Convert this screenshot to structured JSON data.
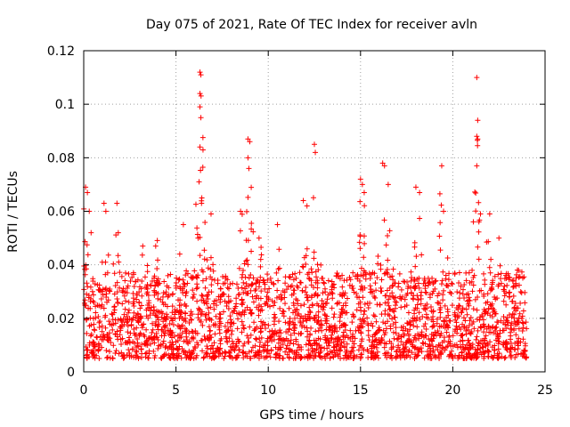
{
  "chart_data": {
    "type": "scatter",
    "title": "Day 075 of 2021, Rate Of TEC Index for receiver avln",
    "xlabel": "GPS time / hours",
    "ylabel": "ROTI / TECUs",
    "xlim": [
      0,
      25
    ],
    "ylim": [
      0,
      0.12
    ],
    "xticks": [
      0,
      5,
      10,
      15,
      20,
      25
    ],
    "xtick_labels": [
      "0",
      "5",
      "10",
      "15",
      "20",
      "25"
    ],
    "yticks": [
      0,
      0.02,
      0.04,
      0.06,
      0.08,
      0.1,
      0.12
    ],
    "ytick_labels": [
      "0",
      "0.02",
      "0.04",
      "0.06",
      "0.08",
      "0.1",
      "0.12"
    ],
    "grid": true,
    "marker": "plus",
    "color": "#ff0000",
    "series": [
      {
        "name": "ROTI",
        "baseline_range": [
          0.005,
          0.03
        ],
        "notable_points": [
          {
            "x": 0.1,
            "y": 0.069
          },
          {
            "x": 0.2,
            "y": 0.067
          },
          {
            "x": 0.3,
            "y": 0.06
          },
          {
            "x": 0.4,
            "y": 0.052
          },
          {
            "x": 1.1,
            "y": 0.063
          },
          {
            "x": 1.2,
            "y": 0.06
          },
          {
            "x": 1.8,
            "y": 0.063
          },
          {
            "x": 3.2,
            "y": 0.047
          },
          {
            "x": 3.9,
            "y": 0.047
          },
          {
            "x": 5.4,
            "y": 0.055
          },
          {
            "x": 6.3,
            "y": 0.112
          },
          {
            "x": 6.35,
            "y": 0.111
          },
          {
            "x": 6.3,
            "y": 0.104
          },
          {
            "x": 6.3,
            "y": 0.099
          },
          {
            "x": 6.35,
            "y": 0.095
          },
          {
            "x": 6.3,
            "y": 0.084
          },
          {
            "x": 6.25,
            "y": 0.071
          },
          {
            "x": 6.4,
            "y": 0.065
          },
          {
            "x": 6.9,
            "y": 0.059
          },
          {
            "x": 8.5,
            "y": 0.06
          },
          {
            "x": 8.9,
            "y": 0.087
          },
          {
            "x": 9.0,
            "y": 0.086
          },
          {
            "x": 8.9,
            "y": 0.08
          },
          {
            "x": 8.95,
            "y": 0.076
          },
          {
            "x": 9.5,
            "y": 0.05
          },
          {
            "x": 10.5,
            "y": 0.055
          },
          {
            "x": 11.9,
            "y": 0.064
          },
          {
            "x": 12.1,
            "y": 0.062
          },
          {
            "x": 12.5,
            "y": 0.085
          },
          {
            "x": 12.55,
            "y": 0.082
          },
          {
            "x": 15.0,
            "y": 0.072
          },
          {
            "x": 15.1,
            "y": 0.07
          },
          {
            "x": 15.2,
            "y": 0.067
          },
          {
            "x": 16.2,
            "y": 0.078
          },
          {
            "x": 16.3,
            "y": 0.077
          },
          {
            "x": 16.5,
            "y": 0.07
          },
          {
            "x": 18.0,
            "y": 0.069
          },
          {
            "x": 18.2,
            "y": 0.067
          },
          {
            "x": 19.4,
            "y": 0.077
          },
          {
            "x": 19.5,
            "y": 0.06
          },
          {
            "x": 21.3,
            "y": 0.11
          },
          {
            "x": 21.35,
            "y": 0.094
          },
          {
            "x": 21.3,
            "y": 0.088
          },
          {
            "x": 21.35,
            "y": 0.087
          },
          {
            "x": 21.3,
            "y": 0.077
          },
          {
            "x": 21.5,
            "y": 0.059
          },
          {
            "x": 22.0,
            "y": 0.059
          },
          {
            "x": 22.5,
            "y": 0.05
          },
          {
            "x": 23.5,
            "y": 0.038
          }
        ]
      }
    ]
  }
}
